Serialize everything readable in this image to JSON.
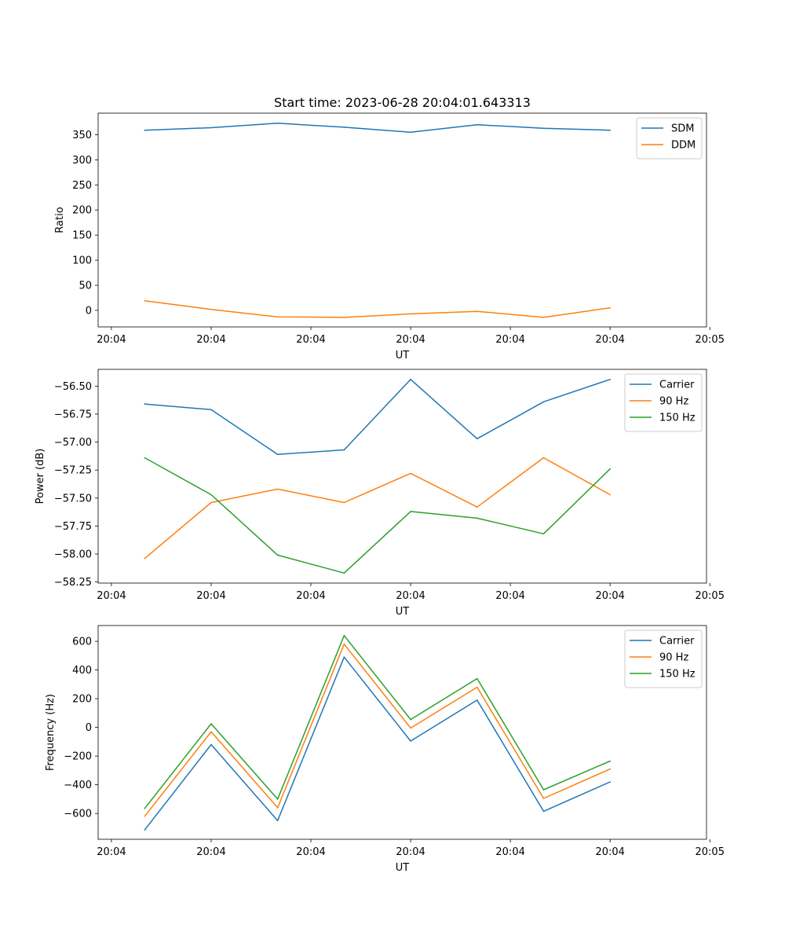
{
  "chart_data": [
    {
      "type": "line",
      "title": "Start time: 2023-06-28 20:04:01.643313",
      "xlabel": "UT",
      "ylabel": "Ratio",
      "x": [
        1,
        2,
        3,
        4,
        5,
        6,
        7,
        8
      ],
      "xlim": [
        0.3,
        9.45
      ],
      "x_ticks": [
        0.5,
        2,
        3.5,
        5,
        6.5,
        8,
        9.5
      ],
      "x_tick_labels": [
        "20:04",
        "20:04",
        "20:04",
        "20:04",
        "20:04",
        "20:04",
        "20:05"
      ],
      "ylim": [
        -33,
        393
      ],
      "y_ticks": [
        0,
        50,
        100,
        150,
        200,
        250,
        300,
        350
      ],
      "y_tick_labels": [
        "0",
        "50",
        "100",
        "150",
        "200",
        "250",
        "300",
        "350"
      ],
      "series": [
        {
          "name": "SDM",
          "color": "#1f77b4",
          "values": [
            359,
            364,
            373,
            365,
            355,
            370,
            363,
            359
          ]
        },
        {
          "name": "DDM",
          "color": "#ff7f0e",
          "values": [
            19,
            2,
            -13,
            -14,
            -7,
            -2,
            -14,
            5
          ]
        }
      ],
      "legend": "top-right",
      "grid": false
    },
    {
      "type": "line",
      "title": "",
      "xlabel": "UT",
      "ylabel": "Power (dB)",
      "x": [
        1,
        2,
        3,
        4,
        5,
        6,
        7,
        8
      ],
      "xlim": [
        0.3,
        9.45
      ],
      "x_ticks": [
        0.5,
        2,
        3.5,
        5,
        6.5,
        8,
        9.5
      ],
      "x_tick_labels": [
        "20:04",
        "20:04",
        "20:04",
        "20:04",
        "20:04",
        "20:04",
        "20:05"
      ],
      "ylim": [
        -58.26,
        -56.35
      ],
      "y_ticks": [
        -58.25,
        -58.0,
        -57.75,
        -57.5,
        -57.25,
        -57.0,
        -56.75,
        -56.5
      ],
      "y_tick_labels": [
        "−58.25",
        "−58.00",
        "−57.75",
        "−57.50",
        "−57.25",
        "−57.00",
        "−56.75",
        "−56.50"
      ],
      "series": [
        {
          "name": "Carrier",
          "color": "#1f77b4",
          "values": [
            -56.66,
            -56.71,
            -57.11,
            -57.07,
            -56.44,
            -56.97,
            -56.64,
            -56.44
          ]
        },
        {
          "name": "90 Hz",
          "color": "#ff7f0e",
          "values": [
            -58.04,
            -57.54,
            -57.42,
            -57.54,
            -57.28,
            -57.58,
            -57.14,
            -57.47
          ]
        },
        {
          "name": "150 Hz",
          "color": "#2ca02c",
          "values": [
            -57.14,
            -57.47,
            -58.01,
            -58.17,
            -57.62,
            -57.68,
            -57.82,
            -57.24
          ]
        }
      ],
      "legend": "top-right",
      "grid": false
    },
    {
      "type": "line",
      "title": "",
      "xlabel": "UT",
      "ylabel": "Frequency (Hz)",
      "x": [
        1,
        2,
        3,
        4,
        5,
        6,
        7,
        8
      ],
      "xlim": [
        0.3,
        9.45
      ],
      "x_ticks": [
        0.5,
        2,
        3.5,
        5,
        6.5,
        8,
        9.5
      ],
      "x_tick_labels": [
        "20:04",
        "20:04",
        "20:04",
        "20:04",
        "20:04",
        "20:04",
        "20:05"
      ],
      "ylim": [
        -780,
        710
      ],
      "y_ticks": [
        -600,
        -400,
        -200,
        0,
        200,
        400,
        600
      ],
      "y_tick_labels": [
        "−600",
        "−400",
        "−200",
        "0",
        "200",
        "400",
        "600"
      ],
      "series": [
        {
          "name": "Carrier",
          "color": "#1f77b4",
          "values": [
            -715,
            -120,
            -650,
            490,
            -95,
            190,
            -585,
            -380
          ]
        },
        {
          "name": "90 Hz",
          "color": "#ff7f0e",
          "values": [
            -620,
            -30,
            -560,
            580,
            -5,
            280,
            -495,
            -290
          ]
        },
        {
          "name": "150 Hz",
          "color": "#2ca02c",
          "values": [
            -565,
            25,
            -500,
            640,
            55,
            340,
            -435,
            -235
          ]
        }
      ],
      "legend": "top-right",
      "grid": false
    }
  ]
}
